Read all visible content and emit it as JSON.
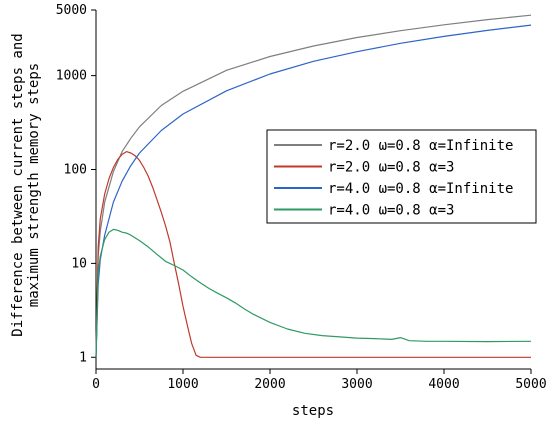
{
  "chart_data": {
    "type": "line",
    "xlabel": "steps",
    "ylabel_lines": [
      "Difference between current steps and",
      "maximum strength memory steps"
    ],
    "xlim": [
      0,
      5000
    ],
    "ylim": [
      0.75,
      5000
    ],
    "y_scale": "log",
    "x_ticks": [
      0,
      1000,
      2000,
      3000,
      4000,
      5000
    ],
    "y_ticks": [
      1,
      10,
      100,
      1000,
      5000
    ],
    "grid": false,
    "legend_position": "right",
    "series": [
      {
        "name": "r=2.0  ω=0.8 α=Infinite",
        "color": "#7f7f7f",
        "x": [
          0,
          25,
          50,
          100,
          200,
          300,
          400,
          500,
          750,
          1000,
          1500,
          2000,
          2500,
          3000,
          3500,
          4000,
          4500,
          5000
        ],
        "y": [
          1,
          12,
          22,
          45,
          95,
          155,
          215,
          285,
          480,
          680,
          1140,
          1600,
          2070,
          2550,
          3010,
          3480,
          3950,
          4400
        ]
      },
      {
        "name": "r=2.0  ω=0.8 α=3",
        "color": "#c0392b",
        "x": [
          0,
          25,
          50,
          100,
          150,
          200,
          250,
          300,
          350,
          400,
          450,
          500,
          550,
          600,
          650,
          700,
          750,
          800,
          850,
          900,
          950,
          1000,
          1050,
          1100,
          1150,
          1200,
          1500,
          2000,
          3000,
          4000,
          5000
        ],
        "y": [
          1,
          15,
          30,
          55,
          80,
          105,
          128,
          145,
          155,
          150,
          140,
          125,
          105,
          85,
          65,
          48,
          35,
          25,
          17,
          10,
          6,
          3.5,
          2.2,
          1.4,
          1.05,
          1,
          1,
          1,
          1,
          1,
          1
        ]
      },
      {
        "name": "r=4.0  ω=0.8 α=Infinite",
        "color": "#2e64c8",
        "x": [
          0,
          25,
          50,
          100,
          200,
          300,
          400,
          500,
          750,
          1000,
          1500,
          2000,
          2500,
          3000,
          3500,
          4000,
          4500,
          5000
        ],
        "y": [
          1,
          6,
          11,
          20,
          45,
          75,
          110,
          150,
          260,
          390,
          690,
          1040,
          1420,
          1800,
          2210,
          2620,
          3030,
          3450
        ]
      },
      {
        "name": "r=4.0  ω=0.8 α=3",
        "color": "#2e9b63",
        "x": [
          0,
          25,
          50,
          100,
          150,
          200,
          250,
          300,
          350,
          400,
          500,
          600,
          700,
          800,
          900,
          1000,
          1100,
          1200,
          1300,
          1400,
          1500,
          1600,
          1700,
          1800,
          2000,
          2200,
          2400,
          2600,
          2800,
          3000,
          3200,
          3400,
          3500,
          3600,
          3800,
          4000,
          4500,
          5000
        ],
        "y": [
          1,
          8,
          12,
          18,
          21.5,
          23,
          22.5,
          21.5,
          21,
          20,
          17.5,
          15,
          12.5,
          10.5,
          9.5,
          8.5,
          7.2,
          6.2,
          5.4,
          4.8,
          4.3,
          3.8,
          3.3,
          2.9,
          2.35,
          2.0,
          1.8,
          1.7,
          1.65,
          1.6,
          1.58,
          1.55,
          1.62,
          1.5,
          1.48,
          1.48,
          1.47,
          1.48
        ]
      }
    ]
  }
}
